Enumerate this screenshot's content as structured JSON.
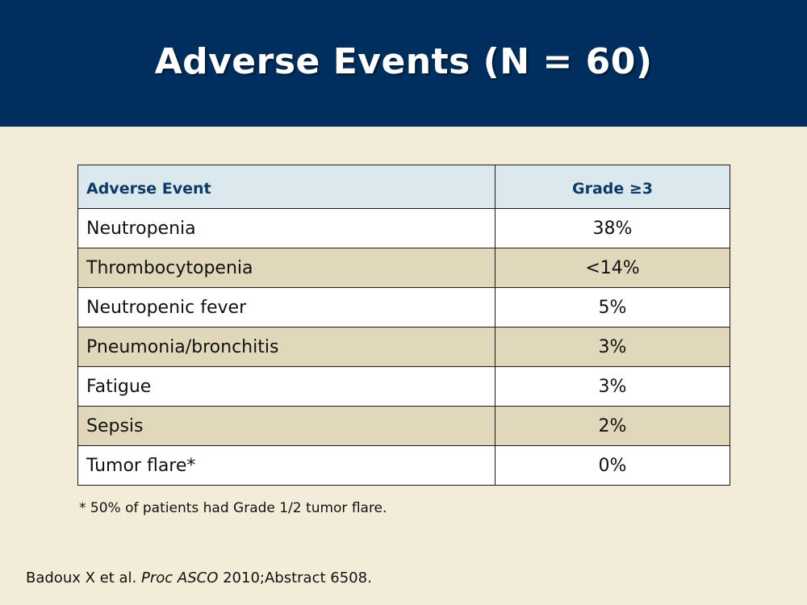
{
  "slide": {
    "title": "Adverse Events (N = 60)",
    "table": {
      "headers": [
        "Adverse Event",
        "Grade ≥3"
      ],
      "rows": [
        {
          "event": "Neutropenia",
          "grade3": "38%"
        },
        {
          "event": "Thrombocytopenia",
          "grade3": "<14%"
        },
        {
          "event": "Neutropenic fever",
          "grade3": "5%"
        },
        {
          "event": "Pneumonia/bronchitis",
          "grade3": "3%"
        },
        {
          "event": "Fatigue",
          "grade3": "3%"
        },
        {
          "event": "Sepsis",
          "grade3": "2%"
        },
        {
          "event": "Tumor flare*",
          "grade3": "0%"
        }
      ]
    },
    "footnote": "* 50% of patients had Grade 1/2 tumor flare.",
    "citation": {
      "authors": "Badoux X et al.",
      "journal": "Proc ASCO",
      "details": "2010;Abstract 6508."
    }
  },
  "colors": {
    "header_bg": "#002f5f",
    "page_bg": "#f2ecd9",
    "table_header_bg": "#dbe8ee",
    "row_alt_bg": "#e1d8bc"
  }
}
